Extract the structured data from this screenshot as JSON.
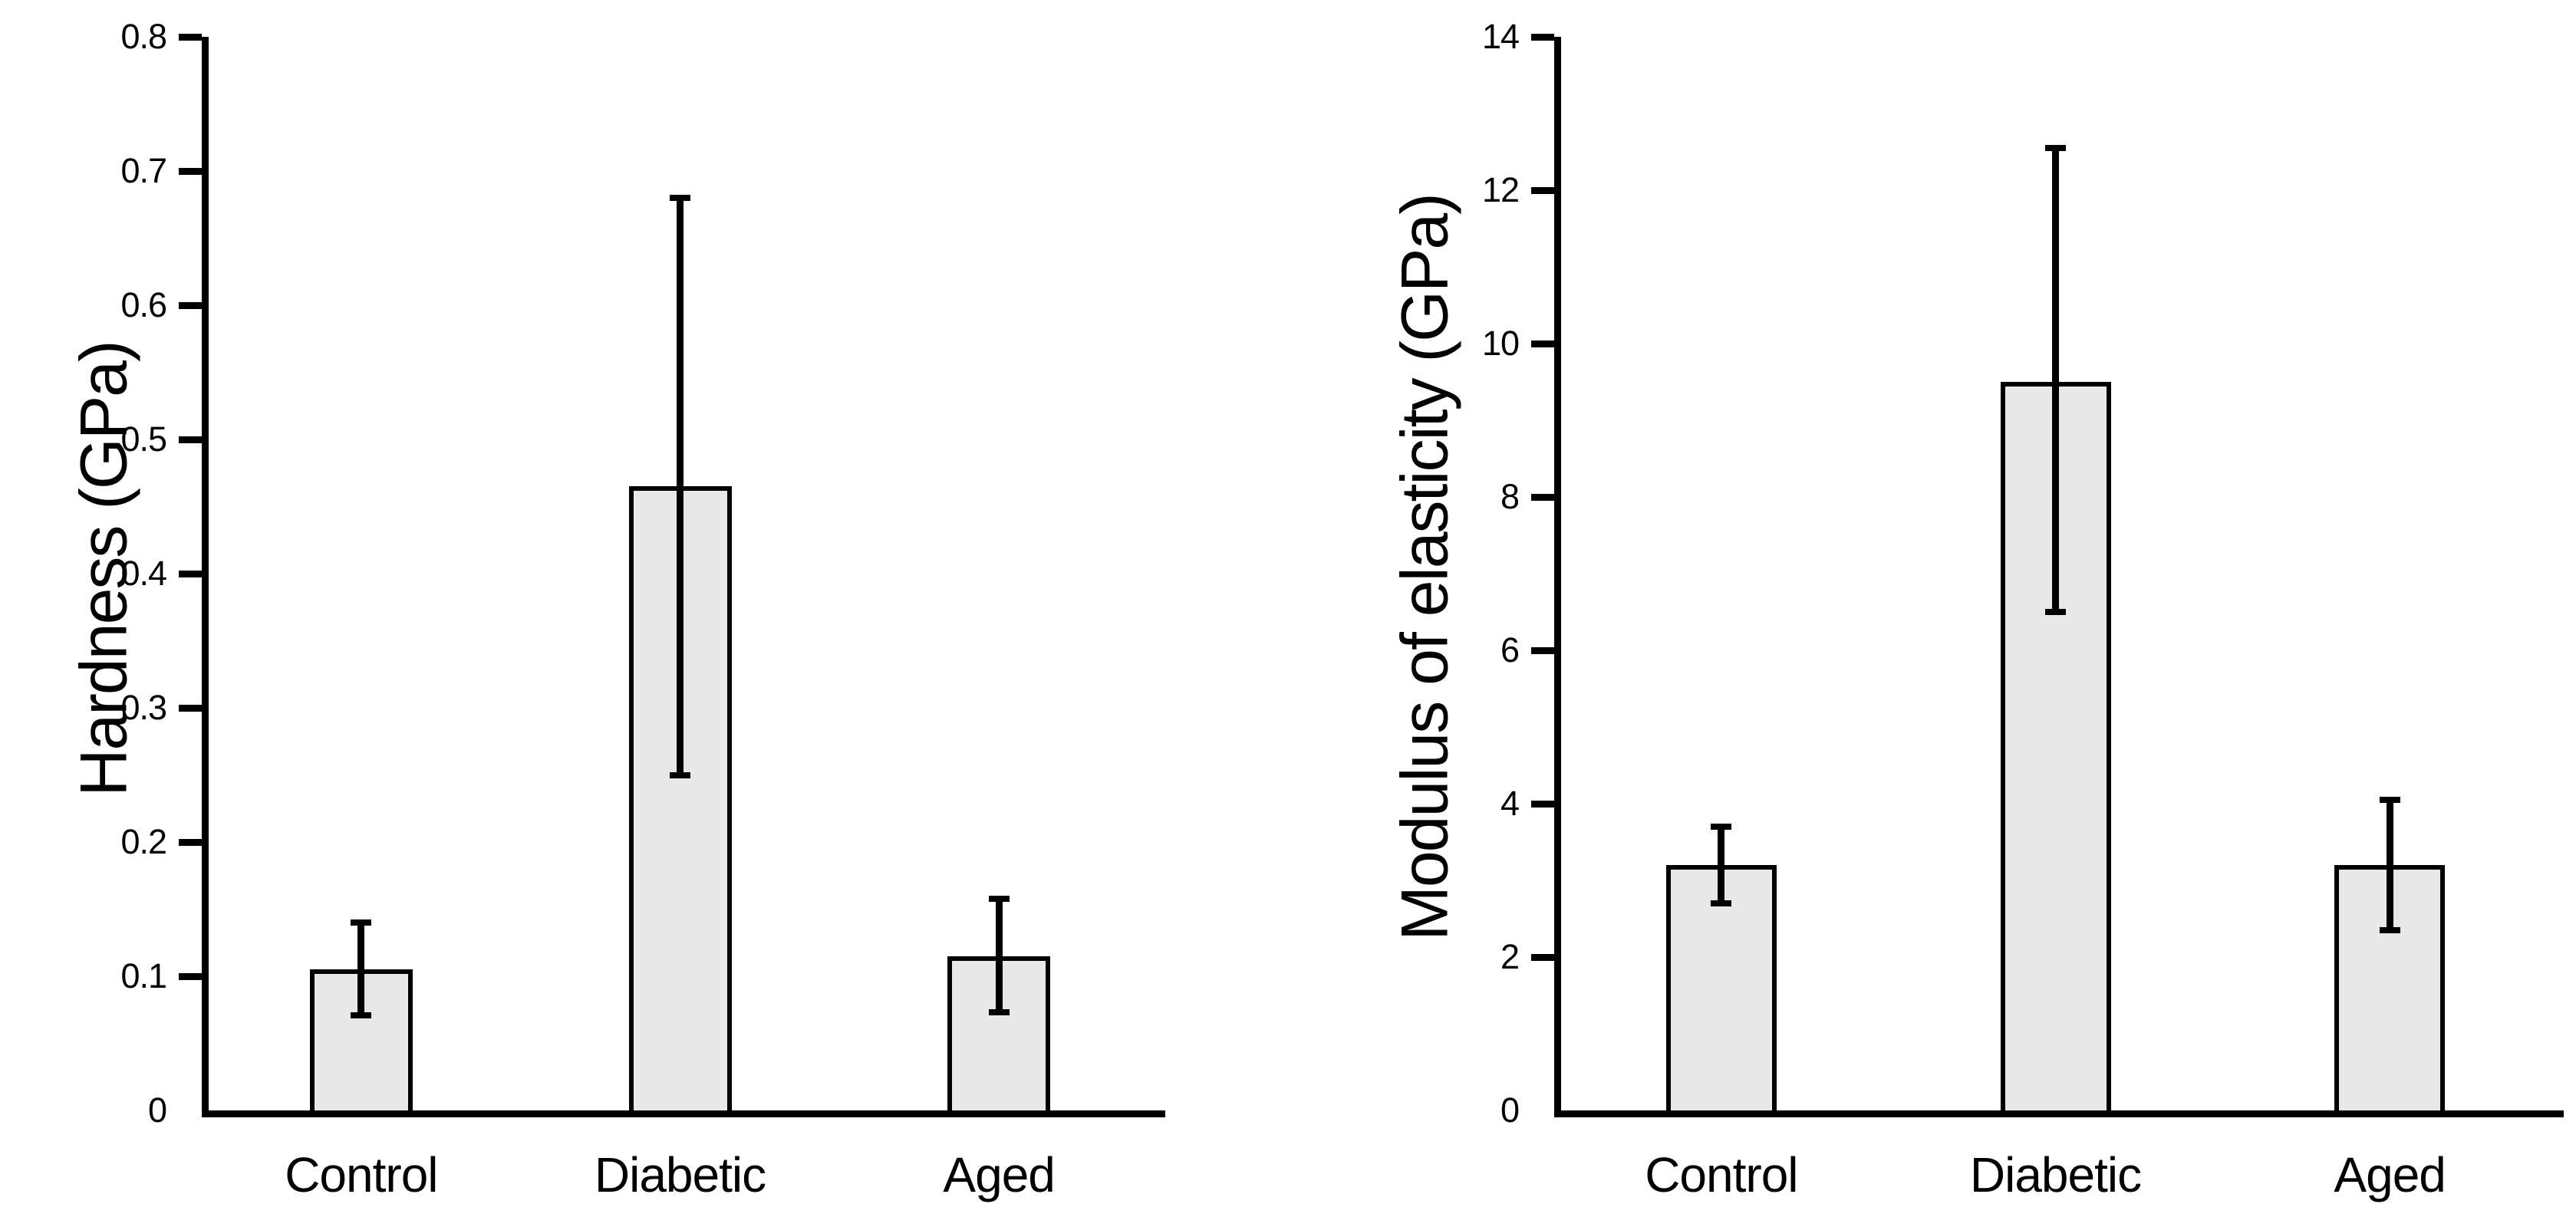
{
  "page": {
    "background": "#ffffff",
    "text_color": "#000000"
  },
  "chart_data": [
    {
      "type": "bar",
      "title": "",
      "ylabel": "Hardness (GPa)",
      "xlabel": "",
      "categories": [
        "Control",
        "Diabetic",
        "Aged"
      ],
      "values": [
        0.105,
        0.465,
        0.115
      ],
      "error_low": [
        0.071,
        0.25,
        0.073
      ],
      "error_high": [
        0.14,
        0.68,
        0.158
      ],
      "ylim": [
        0,
        0.8
      ],
      "ytick_values": [
        0,
        0.1,
        0.2,
        0.3,
        0.4,
        0.5,
        0.6,
        0.7,
        0.8
      ],
      "ytick_labels": [
        "0",
        "0.1",
        "0.2",
        "0.3",
        "0.4",
        "0.5",
        "0.6",
        "0.7",
        "0.8"
      ],
      "grid": "off",
      "legend": "none",
      "bar_fill": "#e8e8e8",
      "bar_border": "#000000"
    },
    {
      "type": "bar",
      "title": "",
      "ylabel": "Modulus of elasticity (GPa)",
      "xlabel": "",
      "categories": [
        "Control",
        "Diabetic",
        "Aged"
      ],
      "values": [
        3.2,
        9.5,
        3.2
      ],
      "error_low": [
        2.7,
        6.5,
        2.35
      ],
      "error_high": [
        3.7,
        12.55,
        4.05
      ],
      "ylim": [
        0,
        14
      ],
      "ytick_values": [
        0,
        2,
        4,
        6,
        8,
        10,
        12,
        14
      ],
      "ytick_labels": [
        "0",
        "2",
        "4",
        "6",
        "8",
        "10",
        "12",
        "14"
      ],
      "grid": "off",
      "legend": "none",
      "bar_fill": "#e8e8e8",
      "bar_border": "#000000"
    }
  ]
}
